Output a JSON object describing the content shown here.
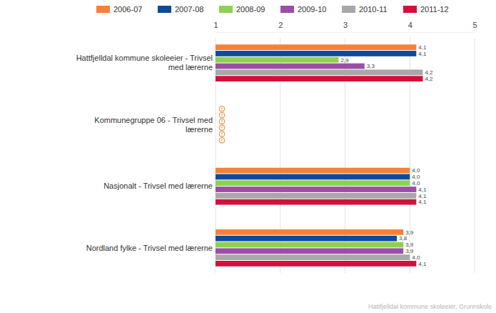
{
  "chart_data": {
    "type": "bar",
    "orientation": "horizontal",
    "categories": [
      "Hattfjelldal kommune skoleeier - Trivsel med lærerne",
      "Kommunegruppe 06 - Trivsel med lærerne",
      "Nasjonalt - Trivsel med lærerne",
      "Nordland fylke - Trivsel med lærerne"
    ],
    "series": [
      {
        "name": "2006-07",
        "color": "#f4813a",
        "values": [
          4.1,
          null,
          4.0,
          3.9
        ],
        "value_labels": [
          "4,1",
          null,
          "4,0",
          "3,9"
        ]
      },
      {
        "name": "2007-08",
        "color": "#0d4a9a",
        "values": [
          4.1,
          null,
          4.0,
          3.8
        ],
        "value_labels": [
          "4,1",
          null,
          "4,0",
          "3,8"
        ]
      },
      {
        "name": "2008-09",
        "color": "#8fd14f",
        "values": [
          2.9,
          null,
          4.0,
          3.9
        ],
        "value_labels": [
          "2,9",
          null,
          "4,0",
          "3,9"
        ]
      },
      {
        "name": "2009-10",
        "color": "#9a4ea6",
        "values": [
          3.3,
          null,
          4.1,
          3.9
        ],
        "value_labels": [
          "3,3",
          null,
          "4,1",
          "3,9"
        ]
      },
      {
        "name": "2010-11",
        "color": "#a8a8a8",
        "values": [
          4.2,
          null,
          4.1,
          4.0
        ],
        "value_labels": [
          "4,2",
          null,
          "4,1",
          "4,0"
        ]
      },
      {
        "name": "2011-12",
        "color": "#d3103c",
        "values": [
          4.2,
          null,
          4.1,
          4.1
        ],
        "value_labels": [
          "4,2",
          null,
          "4,1",
          "4,1"
        ]
      }
    ],
    "xlim": [
      1,
      5
    ],
    "xticks": [
      1,
      2,
      3,
      4,
      5
    ],
    "grid": true,
    "legend": "top",
    "data_labels": true,
    "annotations": [
      "Hattfjelldal kommune skoleeier, Grunnskole"
    ]
  }
}
